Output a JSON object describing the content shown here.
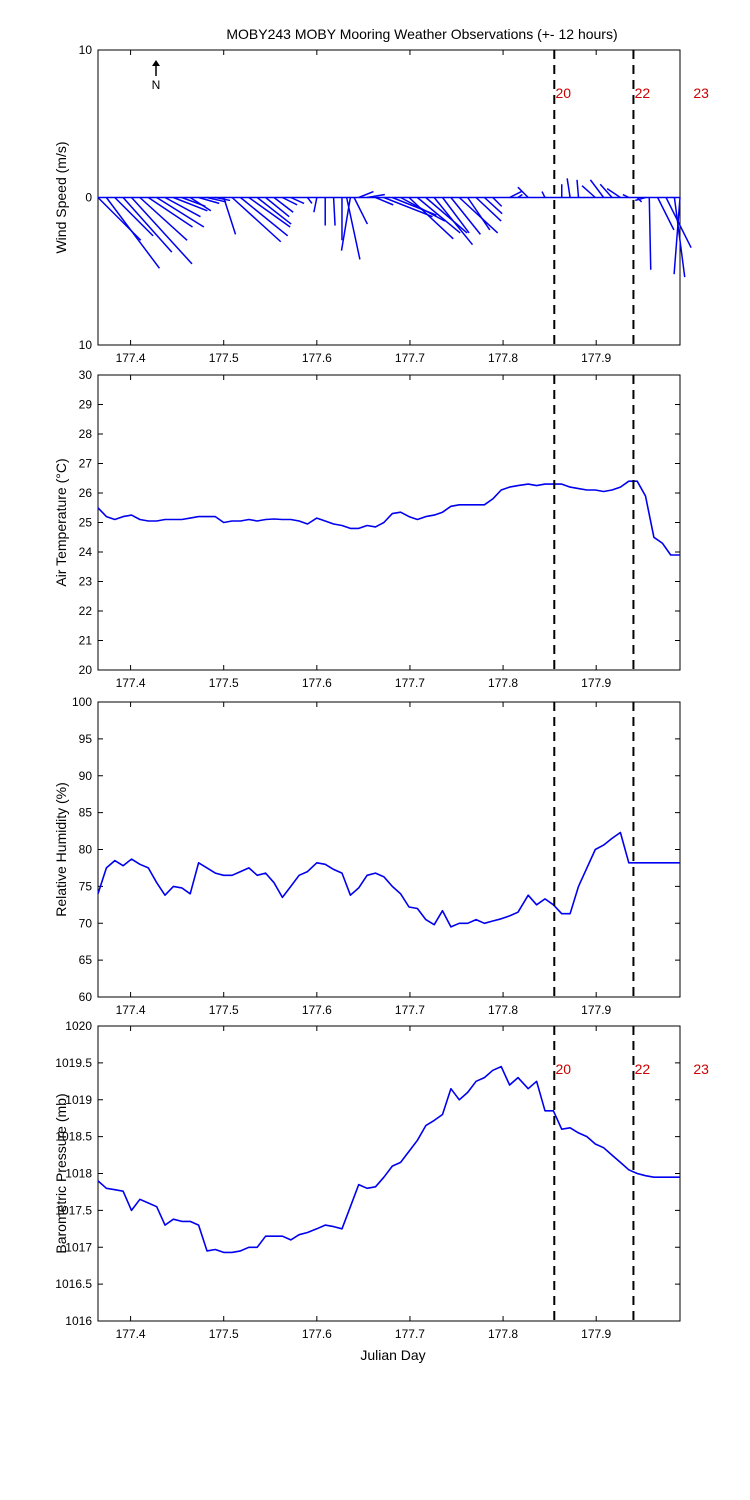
{
  "title": "MOBY243 MOBY Mooring Weather Observations (+- 12 hours)",
  "colors": {
    "data": "#0000ee",
    "marker_label": "#cc0000",
    "axis": "#000000"
  },
  "x_axis": {
    "label": "Julian Day",
    "range": [
      177.365,
      177.99
    ],
    "ticks": [
      177.4,
      177.5,
      177.6,
      177.7,
      177.8,
      177.9
    ],
    "tick_labels": [
      "177.4",
      "177.5",
      "177.6",
      "177.7",
      "177.8",
      "177.9"
    ]
  },
  "markers": [
    {
      "x": 177.855,
      "label": "20"
    },
    {
      "x": 177.94,
      "label": "22"
    },
    {
      "x": 178.003,
      "label": "23"
    }
  ],
  "north_label": "N",
  "chart_data": [
    {
      "type": "line",
      "subtype": "wind-stick",
      "ylabel": "Wind Speed (m/s)",
      "ylim": [
        -10,
        10
      ],
      "y_ticks": [
        10,
        0,
        -10
      ],
      "y_tick_labels": [
        "10",
        "0",
        "10"
      ],
      "show_marker_labels": true,
      "sticks": [
        {
          "x": 177.365,
          "u": 2.9,
          "v": -2.9
        },
        {
          "x": 177.374,
          "u": 3.6,
          "v": -4.8
        },
        {
          "x": 177.383,
          "u": 2.6,
          "v": -2.6
        },
        {
          "x": 177.392,
          "u": 3.3,
          "v": -3.7
        },
        {
          "x": 177.401,
          "u": 4.1,
          "v": -4.5
        },
        {
          "x": 177.41,
          "u": 3.2,
          "v": -2.9
        },
        {
          "x": 177.419,
          "u": 3.0,
          "v": -2.0
        },
        {
          "x": 177.428,
          "u": 3.2,
          "v": -2.0
        },
        {
          "x": 177.437,
          "u": 2.4,
          "v": -1.3
        },
        {
          "x": 177.446,
          "u": 2.3,
          "v": -0.9
        },
        {
          "x": 177.455,
          "u": 1.6,
          "v": -0.6
        },
        {
          "x": 177.464,
          "u": 1.4,
          "v": -0.9
        },
        {
          "x": 177.473,
          "u": 1.4,
          "v": -0.4
        },
        {
          "x": 177.482,
          "u": 1.3,
          "v": -0.3
        },
        {
          "x": 177.491,
          "u": 1.0,
          "v": -0.2
        },
        {
          "x": 177.5,
          "u": 0.8,
          "v": -2.5
        },
        {
          "x": 177.509,
          "u": 3.3,
          "v": -3.0
        },
        {
          "x": 177.518,
          "u": 3.2,
          "v": -2.6
        },
        {
          "x": 177.527,
          "u": 2.8,
          "v": -2.0
        },
        {
          "x": 177.536,
          "u": 2.3,
          "v": -1.8
        },
        {
          "x": 177.545,
          "u": 1.6,
          "v": -1.3
        },
        {
          "x": 177.554,
          "u": 1.3,
          "v": -1.0
        },
        {
          "x": 177.563,
          "u": 1.0,
          "v": -0.5
        },
        {
          "x": 177.572,
          "u": 0.9,
          "v": -0.4
        },
        {
          "x": 177.59,
          "u": 0.3,
          "v": -0.4
        },
        {
          "x": 177.6,
          "u": -0.2,
          "v": -1.0
        },
        {
          "x": 177.609,
          "u": 0.0,
          "v": -1.9
        },
        {
          "x": 177.618,
          "u": 0.1,
          "v": -1.9
        },
        {
          "x": 177.627,
          "u": 0.0,
          "v": -2.9
        },
        {
          "x": 177.632,
          "u": 0.9,
          "v": -4.2
        },
        {
          "x": 177.636,
          "u": -0.6,
          "v": -3.6
        },
        {
          "x": 177.64,
          "u": 0.9,
          "v": -1.8
        },
        {
          "x": 177.645,
          "u": 1.0,
          "v": 0.4
        },
        {
          "x": 177.654,
          "u": 1.2,
          "v": 0.2
        },
        {
          "x": 177.663,
          "u": 1.2,
          "v": -0.5
        },
        {
          "x": 177.672,
          "u": 3.3,
          "v": -1.3
        },
        {
          "x": 177.681,
          "u": 3.0,
          "v": -1.2
        },
        {
          "x": 177.69,
          "u": 3.0,
          "v": -1.6
        },
        {
          "x": 177.699,
          "u": 3.0,
          "v": -2.8
        },
        {
          "x": 177.708,
          "u": 2.9,
          "v": -2.4
        },
        {
          "x": 177.717,
          "u": 2.8,
          "v": -2.4
        },
        {
          "x": 177.726,
          "u": 2.6,
          "v": -3.2
        },
        {
          "x": 177.735,
          "u": 1.8,
          "v": -2.4
        },
        {
          "x": 177.744,
          "u": 2.0,
          "v": -2.5
        },
        {
          "x": 177.753,
          "u": 2.6,
          "v": -2.4
        },
        {
          "x": 177.762,
          "u": 1.5,
          "v": -2.2
        },
        {
          "x": 177.771,
          "u": 1.7,
          "v": -1.6
        },
        {
          "x": 177.78,
          "u": 1.2,
          "v": -1.1
        },
        {
          "x": 177.789,
          "u": 0.6,
          "v": -0.6
        },
        {
          "x": 177.807,
          "u": 0.8,
          "v": 0.4
        },
        {
          "x": 177.816,
          "u": 0.3,
          "v": 0.2
        },
        {
          "x": 177.827,
          "u": -0.7,
          "v": 0.7
        },
        {
          "x": 177.845,
          "u": -0.2,
          "v": 0.4
        },
        {
          "x": 177.863,
          "u": 0.0,
          "v": 0.9
        },
        {
          "x": 177.872,
          "u": -0.2,
          "v": 1.3
        },
        {
          "x": 177.881,
          "u": -0.1,
          "v": 1.2
        },
        {
          "x": 177.899,
          "u": -0.9,
          "v": 0.8
        },
        {
          "x": 177.908,
          "u": -0.9,
          "v": 1.2
        },
        {
          "x": 177.917,
          "u": -0.8,
          "v": 0.9
        },
        {
          "x": 177.926,
          "u": -0.9,
          "v": 0.6
        },
        {
          "x": 177.935,
          "u": -0.4,
          "v": 0.2
        },
        {
          "x": 177.944,
          "u": 0.3,
          "v": -0.3
        },
        {
          "x": 177.953,
          "u": -0.7,
          "v": -0.2
        },
        {
          "x": 177.957,
          "u": 0.1,
          "v": -4.9
        },
        {
          "x": 177.966,
          "u": 1.1,
          "v": -2.2
        },
        {
          "x": 177.975,
          "u": 1.7,
          "v": -3.4
        },
        {
          "x": 177.984,
          "u": 0.7,
          "v": -5.4
        },
        {
          "x": 177.99,
          "u": -0.4,
          "v": -5.2
        }
      ]
    },
    {
      "type": "line",
      "ylabel": "Air Temperature (°C)",
      "ylim": [
        20,
        30
      ],
      "y_ticks": [
        20,
        21,
        22,
        23,
        24,
        25,
        26,
        27,
        28,
        29,
        30
      ],
      "y_tick_labels": [
        "20",
        "21",
        "22",
        "23",
        "24",
        "25",
        "26",
        "27",
        "28",
        "29",
        "30"
      ],
      "show_marker_labels": false,
      "x": [
        177.365,
        177.374,
        177.383,
        177.392,
        177.401,
        177.41,
        177.419,
        177.428,
        177.437,
        177.446,
        177.455,
        177.464,
        177.473,
        177.482,
        177.491,
        177.5,
        177.509,
        177.518,
        177.527,
        177.536,
        177.545,
        177.554,
        177.563,
        177.572,
        177.581,
        177.59,
        177.6,
        177.609,
        177.618,
        177.627,
        177.636,
        177.645,
        177.654,
        177.663,
        177.672,
        177.681,
        177.69,
        177.699,
        177.708,
        177.717,
        177.726,
        177.735,
        177.744,
        177.753,
        177.762,
        177.771,
        177.78,
        177.789,
        177.798,
        177.807,
        177.816,
        177.827,
        177.836,
        177.845,
        177.854,
        177.863,
        177.872,
        177.881,
        177.89,
        177.899,
        177.908,
        177.917,
        177.926,
        177.935,
        177.944,
        177.953,
        177.962,
        177.971,
        177.98,
        177.99
      ],
      "y": [
        25.5,
        25.2,
        25.1,
        25.2,
        25.25,
        25.1,
        25.05,
        25.05,
        25.1,
        25.1,
        25.1,
        25.15,
        25.2,
        25.2,
        25.2,
        25.0,
        25.05,
        25.05,
        25.1,
        25.05,
        25.1,
        25.12,
        25.1,
        25.1,
        25.05,
        24.95,
        25.15,
        25.05,
        24.95,
        24.9,
        24.8,
        24.8,
        24.9,
        24.85,
        25.0,
        25.3,
        25.35,
        25.2,
        25.1,
        25.2,
        25.25,
        25.35,
        25.55,
        25.6,
        25.6,
        25.6,
        25.6,
        25.8,
        26.1,
        26.2,
        26.25,
        26.3,
        26.25,
        26.3,
        26.3,
        26.3,
        26.2,
        26.15,
        26.1,
        26.1,
        26.05,
        26.1,
        26.2,
        26.4,
        26.4,
        25.9,
        24.5,
        24.3,
        23.9,
        23.9
      ]
    },
    {
      "type": "line",
      "ylabel": "Relative Humidity (%)",
      "ylim": [
        60,
        100
      ],
      "y_ticks": [
        60,
        65,
        70,
        75,
        80,
        85,
        90,
        95,
        100
      ],
      "y_tick_labels": [
        "60",
        "65",
        "70",
        "75",
        "80",
        "85",
        "90",
        "95",
        "100"
      ],
      "show_marker_labels": false,
      "x": [
        177.365,
        177.374,
        177.383,
        177.392,
        177.401,
        177.41,
        177.419,
        177.428,
        177.437,
        177.446,
        177.455,
        177.464,
        177.473,
        177.482,
        177.491,
        177.5,
        177.509,
        177.518,
        177.527,
        177.536,
        177.545,
        177.554,
        177.563,
        177.572,
        177.581,
        177.59,
        177.6,
        177.609,
        177.618,
        177.627,
        177.636,
        177.645,
        177.654,
        177.663,
        177.672,
        177.681,
        177.69,
        177.699,
        177.708,
        177.717,
        177.726,
        177.735,
        177.744,
        177.753,
        177.762,
        177.771,
        177.78,
        177.789,
        177.798,
        177.807,
        177.816,
        177.827,
        177.836,
        177.845,
        177.854,
        177.863,
        177.872,
        177.881,
        177.89,
        177.899,
        177.908,
        177.917,
        177.926,
        177.935,
        177.944,
        177.953,
        177.962,
        177.971,
        177.98,
        177.99
      ],
      "y": [
        74.0,
        77.5,
        78.5,
        77.8,
        78.7,
        78.0,
        77.5,
        75.5,
        73.8,
        75.0,
        74.8,
        74.0,
        78.2,
        77.5,
        76.8,
        76.5,
        76.5,
        77.0,
        77.5,
        76.5,
        76.8,
        75.5,
        73.5,
        75.0,
        76.5,
        77.0,
        78.2,
        78.0,
        77.3,
        76.8,
        73.8,
        74.8,
        76.5,
        76.8,
        76.3,
        75.0,
        74.0,
        72.2,
        72.0,
        70.5,
        69.8,
        71.7,
        69.5,
        70.0,
        70.0,
        70.5,
        70.0,
        70.3,
        70.6,
        71.0,
        71.5,
        73.8,
        72.5,
        73.3,
        72.5,
        71.3,
        71.3,
        75.0,
        77.5,
        80.0,
        80.6,
        81.5,
        82.3,
        78.2,
        78.2,
        78.2,
        78.2,
        78.2,
        78.2,
        78.2
      ]
    },
    {
      "type": "line",
      "ylabel": "Barometric Pressure (mb)",
      "xlabel": "Julian Day",
      "ylim": [
        1016,
        1020
      ],
      "y_ticks": [
        1016,
        1016.5,
        1017,
        1017.5,
        1018,
        1018.5,
        1019,
        1019.5,
        1020
      ],
      "y_tick_labels": [
        "1016",
        "1016.5",
        "1017",
        "1017.5",
        "1018",
        "1018.5",
        "1019",
        "1019.5",
        "1020"
      ],
      "show_marker_labels": true,
      "x": [
        177.365,
        177.374,
        177.383,
        177.392,
        177.401,
        177.41,
        177.419,
        177.428,
        177.437,
        177.446,
        177.455,
        177.464,
        177.473,
        177.482,
        177.491,
        177.5,
        177.509,
        177.518,
        177.527,
        177.536,
        177.545,
        177.554,
        177.563,
        177.572,
        177.581,
        177.59,
        177.6,
        177.609,
        177.618,
        177.627,
        177.636,
        177.645,
        177.654,
        177.663,
        177.672,
        177.681,
        177.69,
        177.699,
        177.708,
        177.717,
        177.726,
        177.735,
        177.744,
        177.753,
        177.762,
        177.771,
        177.78,
        177.789,
        177.798,
        177.807,
        177.816,
        177.827,
        177.836,
        177.845,
        177.854,
        177.863,
        177.872,
        177.881,
        177.89,
        177.899,
        177.908,
        177.917,
        177.926,
        177.935,
        177.944,
        177.953,
        177.962,
        177.971,
        177.98,
        177.99
      ],
      "y": [
        1017.9,
        1017.8,
        1017.78,
        1017.76,
        1017.5,
        1017.65,
        1017.6,
        1017.55,
        1017.3,
        1017.38,
        1017.35,
        1017.35,
        1017.3,
        1016.95,
        1016.97,
        1016.93,
        1016.93,
        1016.95,
        1017.0,
        1017.0,
        1017.15,
        1017.15,
        1017.15,
        1017.1,
        1017.17,
        1017.2,
        1017.25,
        1017.3,
        1017.28,
        1017.25,
        1017.55,
        1017.85,
        1017.8,
        1017.82,
        1017.95,
        1018.1,
        1018.15,
        1018.3,
        1018.45,
        1018.65,
        1018.72,
        1018.8,
        1019.15,
        1019.0,
        1019.1,
        1019.25,
        1019.3,
        1019.4,
        1019.45,
        1019.2,
        1019.3,
        1019.15,
        1019.25,
        1018.85,
        1018.85,
        1018.6,
        1018.62,
        1018.55,
        1018.5,
        1018.4,
        1018.35,
        1018.25,
        1018.15,
        1018.05,
        1018.0,
        1017.97,
        1017.95,
        1017.95,
        1017.95,
        1017.95
      ]
    }
  ]
}
